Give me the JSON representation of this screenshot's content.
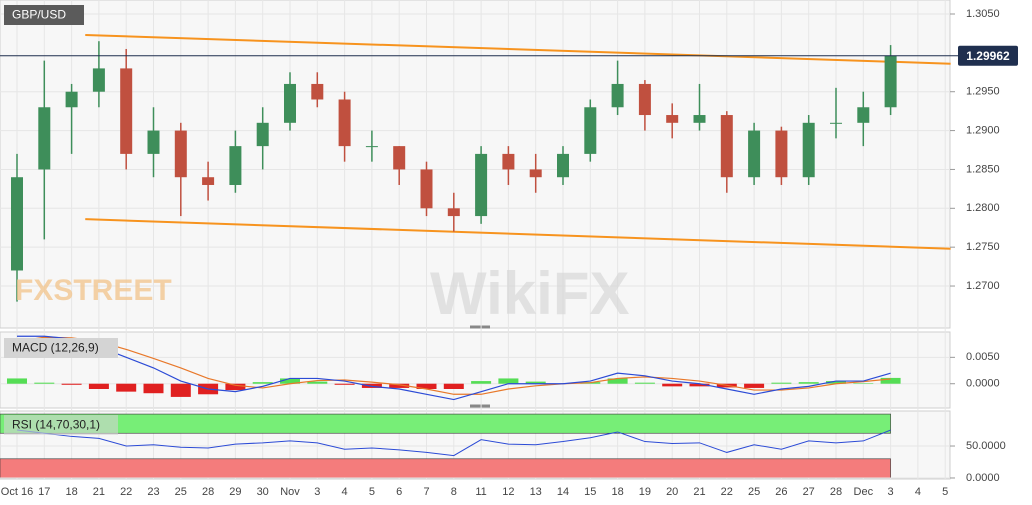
{
  "chart_data": [
    {
      "type": "candlestick",
      "title": "GBP/USD",
      "categories": [
        "Oct 16",
        "17",
        "18",
        "21",
        "22",
        "23",
        "25",
        "28",
        "29",
        "30",
        "Nov",
        "3",
        "4",
        "5",
        "6",
        "7",
        "8",
        "11",
        "12",
        "13",
        "14",
        "15",
        "18",
        "19",
        "20",
        "21",
        "22",
        "25",
        "26",
        "27",
        "28",
        "Dec",
        "3",
        "4",
        "5"
      ],
      "open": [
        1.272,
        1.285,
        1.293,
        1.295,
        1.298,
        1.287,
        1.29,
        1.284,
        1.283,
        1.288,
        1.291,
        1.296,
        1.294,
        1.288,
        1.288,
        1.285,
        1.28,
        1.279,
        1.287,
        1.285,
        1.284,
        1.287,
        1.293,
        1.296,
        1.292,
        1.291,
        1.292,
        1.284,
        1.29,
        1.284,
        1.291,
        1.291,
        1.293,
        null,
        null
      ],
      "high": [
        1.287,
        1.299,
        1.296,
        1.3015,
        1.3005,
        1.293,
        1.291,
        1.286,
        1.29,
        1.293,
        1.2975,
        1.2975,
        1.295,
        1.29,
        1.288,
        1.286,
        1.282,
        1.288,
        1.288,
        1.287,
        1.288,
        1.294,
        1.299,
        1.2965,
        1.2935,
        1.296,
        1.2925,
        1.291,
        1.2905,
        1.292,
        1.2955,
        1.295,
        1.301,
        null,
        null
      ],
      "low": [
        1.268,
        1.276,
        1.287,
        1.293,
        1.285,
        1.284,
        1.279,
        1.281,
        1.282,
        1.285,
        1.29,
        1.293,
        1.286,
        1.286,
        1.283,
        1.279,
        1.277,
        1.278,
        1.283,
        1.282,
        1.283,
        1.286,
        1.292,
        1.29,
        1.289,
        1.29,
        1.282,
        1.283,
        1.283,
        1.283,
        1.289,
        1.288,
        1.292,
        null,
        null
      ],
      "close": [
        1.284,
        1.293,
        1.295,
        1.298,
        1.287,
        1.29,
        1.284,
        1.283,
        1.288,
        1.291,
        1.296,
        1.294,
        1.288,
        1.288,
        1.285,
        1.28,
        1.279,
        1.287,
        1.285,
        1.284,
        1.287,
        1.293,
        1.296,
        1.292,
        1.291,
        1.292,
        1.284,
        1.29,
        1.284,
        1.291,
        1.291,
        1.293,
        1.29962,
        null,
        null
      ],
      "ylim": [
        1.2646,
        1.3068
      ],
      "yticks": [
        {
          "value": 1.305,
          "label": "1.3050"
        },
        {
          "value": 1.295,
          "label": "1.2950"
        },
        {
          "value": 1.29,
          "label": "1.2900"
        },
        {
          "value": 1.285,
          "label": "1.2850"
        },
        {
          "value": 1.28,
          "label": "1.2800"
        },
        {
          "value": 1.275,
          "label": "1.2750"
        },
        {
          "value": 1.27,
          "label": "1.2700"
        }
      ],
      "current_price": 1.29962,
      "trendlines": [
        {
          "from": [
            2.5,
            1.3023
          ],
          "to": [
            34.2,
            1.2986
          ]
        },
        {
          "from": [
            2.5,
            1.2786
          ],
          "to": [
            34.2,
            1.2748
          ]
        }
      ],
      "color_up": "#3e8e5a",
      "color_down": "#c0503f",
      "trendline_color": "#f7931e",
      "price_line_color": "#1f2f4f",
      "grid": true
    },
    {
      "type": "macd",
      "title": "MACD (12,26,9)",
      "macd": [
        0.009,
        0.009,
        0.0085,
        0.007,
        0.005,
        0.003,
        0.0005,
        -0.001,
        -0.0015,
        -0.0005,
        0.001,
        0.001,
        0.0005,
        -0.0005,
        -0.001,
        -0.002,
        -0.003,
        -0.0015,
        0,
        0,
        0,
        0.0005,
        0.002,
        0.0015,
        0.0005,
        0,
        -0.001,
        -0.002,
        -0.001,
        -0.0005,
        0.0005,
        0.0005,
        0.002,
        null,
        null
      ],
      "signal": [
        0.008,
        0.0088,
        0.0087,
        0.008,
        0.0065,
        0.0048,
        0.003,
        0.001,
        -0.0003,
        -0.0008,
        0,
        0.0006,
        0.0007,
        0.0003,
        -0.0002,
        -0.001,
        -0.002,
        -0.002,
        -0.001,
        -0.0004,
        0,
        0.0002,
        0.001,
        0.0013,
        0.001,
        0.0005,
        -0.0003,
        -0.0012,
        -0.0012,
        -0.0008,
        0,
        0.0004,
        0.0009,
        null,
        null
      ],
      "histogram": [
        0.001,
        0.0002,
        -0.0002,
        -0.001,
        -0.0015,
        -0.0018,
        -0.0025,
        -0.002,
        -0.0012,
        0.0003,
        0.001,
        0.0004,
        -0.0002,
        -0.0008,
        -0.0008,
        -0.001,
        -0.001,
        0.0005,
        0.001,
        0.0004,
        0,
        0.0003,
        0.001,
        0.0002,
        -0.0005,
        -0.0005,
        -0.0007,
        -0.0008,
        0.0002,
        0.0003,
        0.0005,
        0.0001,
        0.0011,
        null,
        null
      ],
      "macd_color": "#2c4bd6",
      "signal_color": "#e8782a",
      "hist_up_color": "#55dd55",
      "hist_down_color": "#e02020",
      "ylim": [
        -0.0046,
        0.0098
      ],
      "yticks": [
        {
          "value": 0.005,
          "label": "0.0050"
        },
        {
          "value": 0,
          "label": "0.0000"
        }
      ]
    },
    {
      "type": "rsi",
      "title": "RSI (14,70,30,1)",
      "values": [
        75,
        70,
        65,
        62,
        50,
        52,
        48,
        47,
        53,
        55,
        58,
        55,
        45,
        47,
        44,
        40,
        35,
        60,
        53,
        52,
        57,
        63,
        72,
        57,
        54,
        55,
        40,
        52,
        45,
        58,
        55,
        58,
        75,
        null,
        null
      ],
      "color": "#2c4bd6",
      "zones": [
        {
          "range": [
            70,
            100
          ],
          "color": "#77ee77"
        },
        {
          "range": [
            0,
            30
          ],
          "color": "#f47c7c"
        }
      ],
      "ylim": [
        -1.6,
        104.8
      ],
      "yticks": [
        {
          "value": 50,
          "label": "50.0000"
        },
        {
          "value": 0,
          "label": "0.0000"
        }
      ]
    }
  ],
  "watermarks": [
    "FXSTREET",
    "WikiFX"
  ]
}
